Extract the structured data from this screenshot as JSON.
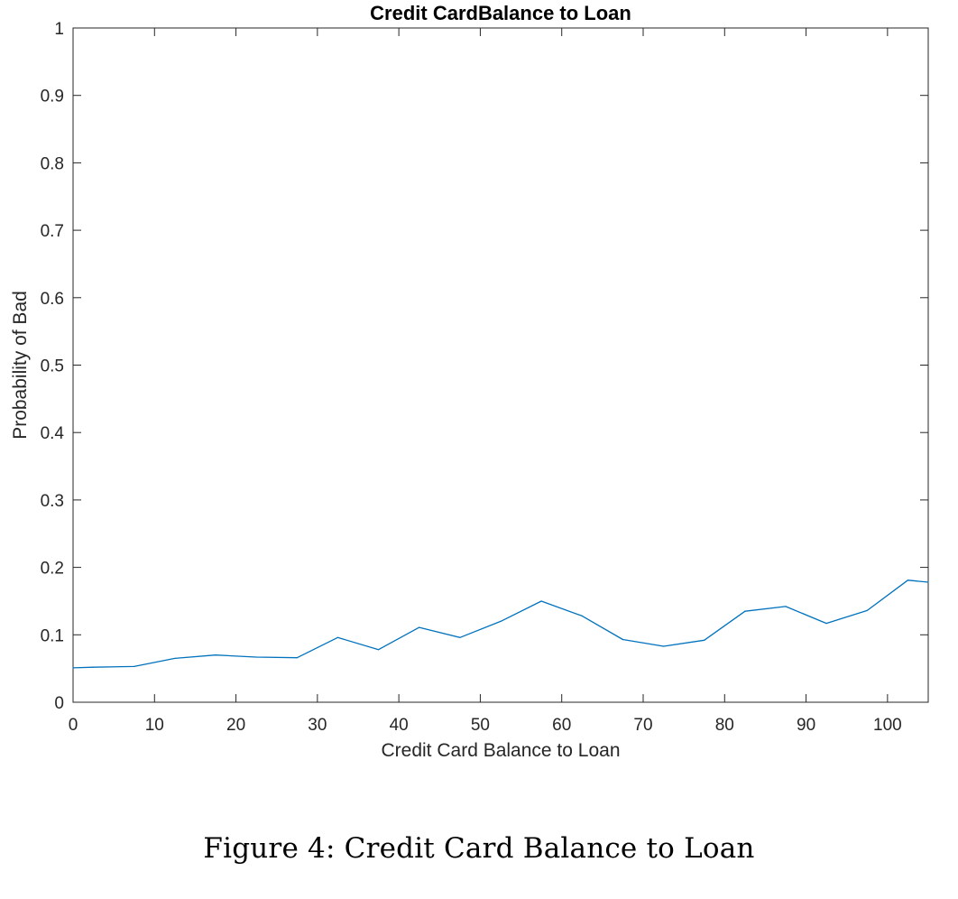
{
  "chart_data": {
    "type": "line",
    "title": "Credit CardBalance to Loan",
    "xlabel": "Credit Card Balance to Loan",
    "ylabel": "Probability of Bad",
    "xlim": [
      0,
      105
    ],
    "ylim": [
      0,
      1
    ],
    "x_ticks": [
      0,
      10,
      20,
      30,
      40,
      50,
      60,
      70,
      80,
      90,
      100
    ],
    "y_ticks": [
      0,
      0.1,
      0.2,
      0.3,
      0.4,
      0.5,
      0.6,
      0.7,
      0.8,
      0.9,
      1
    ],
    "x_tick_labels": [
      "0",
      "10",
      "20",
      "30",
      "40",
      "50",
      "60",
      "70",
      "80",
      "90",
      "100"
    ],
    "y_tick_labels": [
      "0",
      "0.1",
      "0.2",
      "0.3",
      "0.4",
      "0.5",
      "0.6",
      "0.7",
      "0.8",
      "0.9",
      "1"
    ],
    "grid": false,
    "box": true,
    "series": [
      {
        "color": "#0072BD",
        "x": [
          0,
          2.5,
          7.5,
          12.5,
          17.5,
          22.5,
          27.5,
          32.5,
          37.5,
          42.5,
          47.5,
          52.5,
          57.5,
          62.5,
          67.5,
          72.5,
          77.5,
          82.5,
          87.5,
          92.5,
          97.5,
          102.5,
          105
        ],
        "y": [
          0.051,
          0.052,
          0.053,
          0.065,
          0.07,
          0.067,
          0.066,
          0.096,
          0.078,
          0.111,
          0.096,
          0.12,
          0.15,
          0.128,
          0.093,
          0.083,
          0.092,
          0.135,
          0.142,
          0.117,
          0.136,
          0.181,
          0.178
        ]
      }
    ]
  },
  "caption": "Figure 4: Credit Card Balance to Loan"
}
